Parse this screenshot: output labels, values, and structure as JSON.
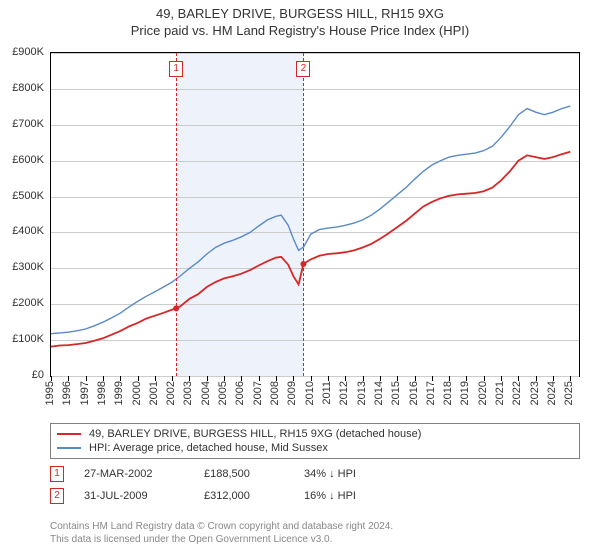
{
  "title": {
    "line1": "49, BARLEY DRIVE, BURGESS HILL, RH15 9XG",
    "line2": "Price paid vs. HM Land Registry's House Price Index (HPI)"
  },
  "chart": {
    "type": "line",
    "background_color": "#ffffff",
    "grid_color": "#cccccc",
    "axis_color": "#000000",
    "x_min": 1995,
    "x_max": 2025.5,
    "y_min": 0,
    "y_max": 900000,
    "y_tick_step": 100000,
    "y_tick_labels": [
      "£0",
      "£100K",
      "£200K",
      "£300K",
      "£400K",
      "£500K",
      "£600K",
      "£700K",
      "£800K",
      "£900K"
    ],
    "x_ticks": [
      1995,
      1996,
      1997,
      1998,
      1999,
      2000,
      2001,
      2002,
      2003,
      2004,
      2005,
      2006,
      2007,
      2008,
      2009,
      2010,
      2011,
      2012,
      2013,
      2014,
      2015,
      2016,
      2017,
      2018,
      2019,
      2020,
      2021,
      2022,
      2023,
      2024,
      2025
    ],
    "shade": {
      "x_start": 2002.2,
      "x_end": 2009.6,
      "color": "#eef3fb"
    },
    "markers": [
      {
        "id": "1",
        "x": 2002.23,
        "y_paid": 188500,
        "color": "#d62728"
      },
      {
        "id": "2",
        "x": 2009.58,
        "y_paid": 312000,
        "color": "#d62728"
      }
    ],
    "series": {
      "paid": {
        "color": "#d62728",
        "line_width": 1.8,
        "label": "49, BARLEY DRIVE, BURGESS HILL, RH15 9XG (detached house)",
        "points": [
          [
            1995.0,
            82000
          ],
          [
            1995.5,
            85000
          ],
          [
            1996.0,
            86000
          ],
          [
            1996.5,
            89000
          ],
          [
            1997.0,
            92000
          ],
          [
            1997.5,
            98000
          ],
          [
            1998.0,
            105000
          ],
          [
            1998.5,
            115000
          ],
          [
            1999.0,
            125000
          ],
          [
            1999.5,
            138000
          ],
          [
            2000.0,
            148000
          ],
          [
            2000.5,
            160000
          ],
          [
            2001.0,
            168000
          ],
          [
            2001.5,
            176000
          ],
          [
            2002.0,
            185000
          ],
          [
            2002.23,
            188500
          ],
          [
            2002.5,
            195000
          ],
          [
            2003.0,
            215000
          ],
          [
            2003.5,
            228000
          ],
          [
            2004.0,
            248000
          ],
          [
            2004.5,
            262000
          ],
          [
            2005.0,
            272000
          ],
          [
            2005.5,
            278000
          ],
          [
            2006.0,
            285000
          ],
          [
            2006.5,
            295000
          ],
          [
            2007.0,
            308000
          ],
          [
            2007.5,
            320000
          ],
          [
            2008.0,
            330000
          ],
          [
            2008.3,
            332000
          ],
          [
            2008.7,
            310000
          ],
          [
            2009.0,
            278000
          ],
          [
            2009.3,
            255000
          ],
          [
            2009.58,
            312000
          ],
          [
            2010.0,
            325000
          ],
          [
            2010.5,
            335000
          ],
          [
            2011.0,
            340000
          ],
          [
            2011.5,
            342000
          ],
          [
            2012.0,
            345000
          ],
          [
            2012.5,
            350000
          ],
          [
            2013.0,
            358000
          ],
          [
            2013.5,
            368000
          ],
          [
            2014.0,
            382000
          ],
          [
            2014.5,
            398000
          ],
          [
            2015.0,
            415000
          ],
          [
            2015.5,
            432000
          ],
          [
            2016.0,
            452000
          ],
          [
            2016.5,
            472000
          ],
          [
            2017.0,
            485000
          ],
          [
            2017.5,
            495000
          ],
          [
            2018.0,
            502000
          ],
          [
            2018.5,
            506000
          ],
          [
            2019.0,
            508000
          ],
          [
            2019.5,
            510000
          ],
          [
            2020.0,
            515000
          ],
          [
            2020.5,
            525000
          ],
          [
            2021.0,
            545000
          ],
          [
            2021.5,
            570000
          ],
          [
            2022.0,
            600000
          ],
          [
            2022.5,
            615000
          ],
          [
            2023.0,
            610000
          ],
          [
            2023.5,
            605000
          ],
          [
            2024.0,
            610000
          ],
          [
            2024.5,
            618000
          ],
          [
            2025.0,
            625000
          ]
        ]
      },
      "hpi": {
        "color": "#5a8ac6",
        "line_width": 1.4,
        "label": "HPI: Average price, detached house, Mid Sussex",
        "points": [
          [
            1995.0,
            118000
          ],
          [
            1995.5,
            120000
          ],
          [
            1996.0,
            122000
          ],
          [
            1996.5,
            126000
          ],
          [
            1997.0,
            131000
          ],
          [
            1997.5,
            140000
          ],
          [
            1998.0,
            150000
          ],
          [
            1998.5,
            162000
          ],
          [
            1999.0,
            175000
          ],
          [
            1999.5,
            192000
          ],
          [
            2000.0,
            208000
          ],
          [
            2000.5,
            222000
          ],
          [
            2001.0,
            235000
          ],
          [
            2001.5,
            248000
          ],
          [
            2002.0,
            262000
          ],
          [
            2002.5,
            280000
          ],
          [
            2003.0,
            300000
          ],
          [
            2003.5,
            318000
          ],
          [
            2004.0,
            340000
          ],
          [
            2004.5,
            358000
          ],
          [
            2005.0,
            370000
          ],
          [
            2005.5,
            378000
          ],
          [
            2006.0,
            388000
          ],
          [
            2006.5,
            400000
          ],
          [
            2007.0,
            418000
          ],
          [
            2007.5,
            435000
          ],
          [
            2008.0,
            445000
          ],
          [
            2008.3,
            448000
          ],
          [
            2008.7,
            420000
          ],
          [
            2009.0,
            382000
          ],
          [
            2009.3,
            350000
          ],
          [
            2009.6,
            360000
          ],
          [
            2010.0,
            395000
          ],
          [
            2010.5,
            408000
          ],
          [
            2011.0,
            412000
          ],
          [
            2011.5,
            415000
          ],
          [
            2012.0,
            420000
          ],
          [
            2012.5,
            426000
          ],
          [
            2013.0,
            435000
          ],
          [
            2013.5,
            448000
          ],
          [
            2014.0,
            465000
          ],
          [
            2014.5,
            485000
          ],
          [
            2015.0,
            505000
          ],
          [
            2015.5,
            525000
          ],
          [
            2016.0,
            548000
          ],
          [
            2016.5,
            570000
          ],
          [
            2017.0,
            588000
          ],
          [
            2017.5,
            600000
          ],
          [
            2018.0,
            610000
          ],
          [
            2018.5,
            615000
          ],
          [
            2019.0,
            618000
          ],
          [
            2019.5,
            621000
          ],
          [
            2020.0,
            628000
          ],
          [
            2020.5,
            640000
          ],
          [
            2021.0,
            665000
          ],
          [
            2021.5,
            695000
          ],
          [
            2022.0,
            728000
          ],
          [
            2022.5,
            745000
          ],
          [
            2023.0,
            735000
          ],
          [
            2023.5,
            728000
          ],
          [
            2024.0,
            735000
          ],
          [
            2024.5,
            745000
          ],
          [
            2025.0,
            752000
          ]
        ]
      }
    },
    "sale_dot": {
      "color": "#d62728",
      "radius": 3
    }
  },
  "legend": {
    "border_color": "#808080"
  },
  "transactions": [
    {
      "marker": "1",
      "marker_color": "#d62728",
      "date": "27-MAR-2002",
      "price": "£188,500",
      "pct": "34% ↓ HPI"
    },
    {
      "marker": "2",
      "marker_color": "#d62728",
      "date": "31-JUL-2009",
      "price": "£312,000",
      "pct": "16% ↓ HPI"
    }
  ],
  "footer": {
    "line1": "Contains HM Land Registry data © Crown copyright and database right 2024.",
    "line2": "This data is licensed under the Open Government Licence v3.0."
  }
}
